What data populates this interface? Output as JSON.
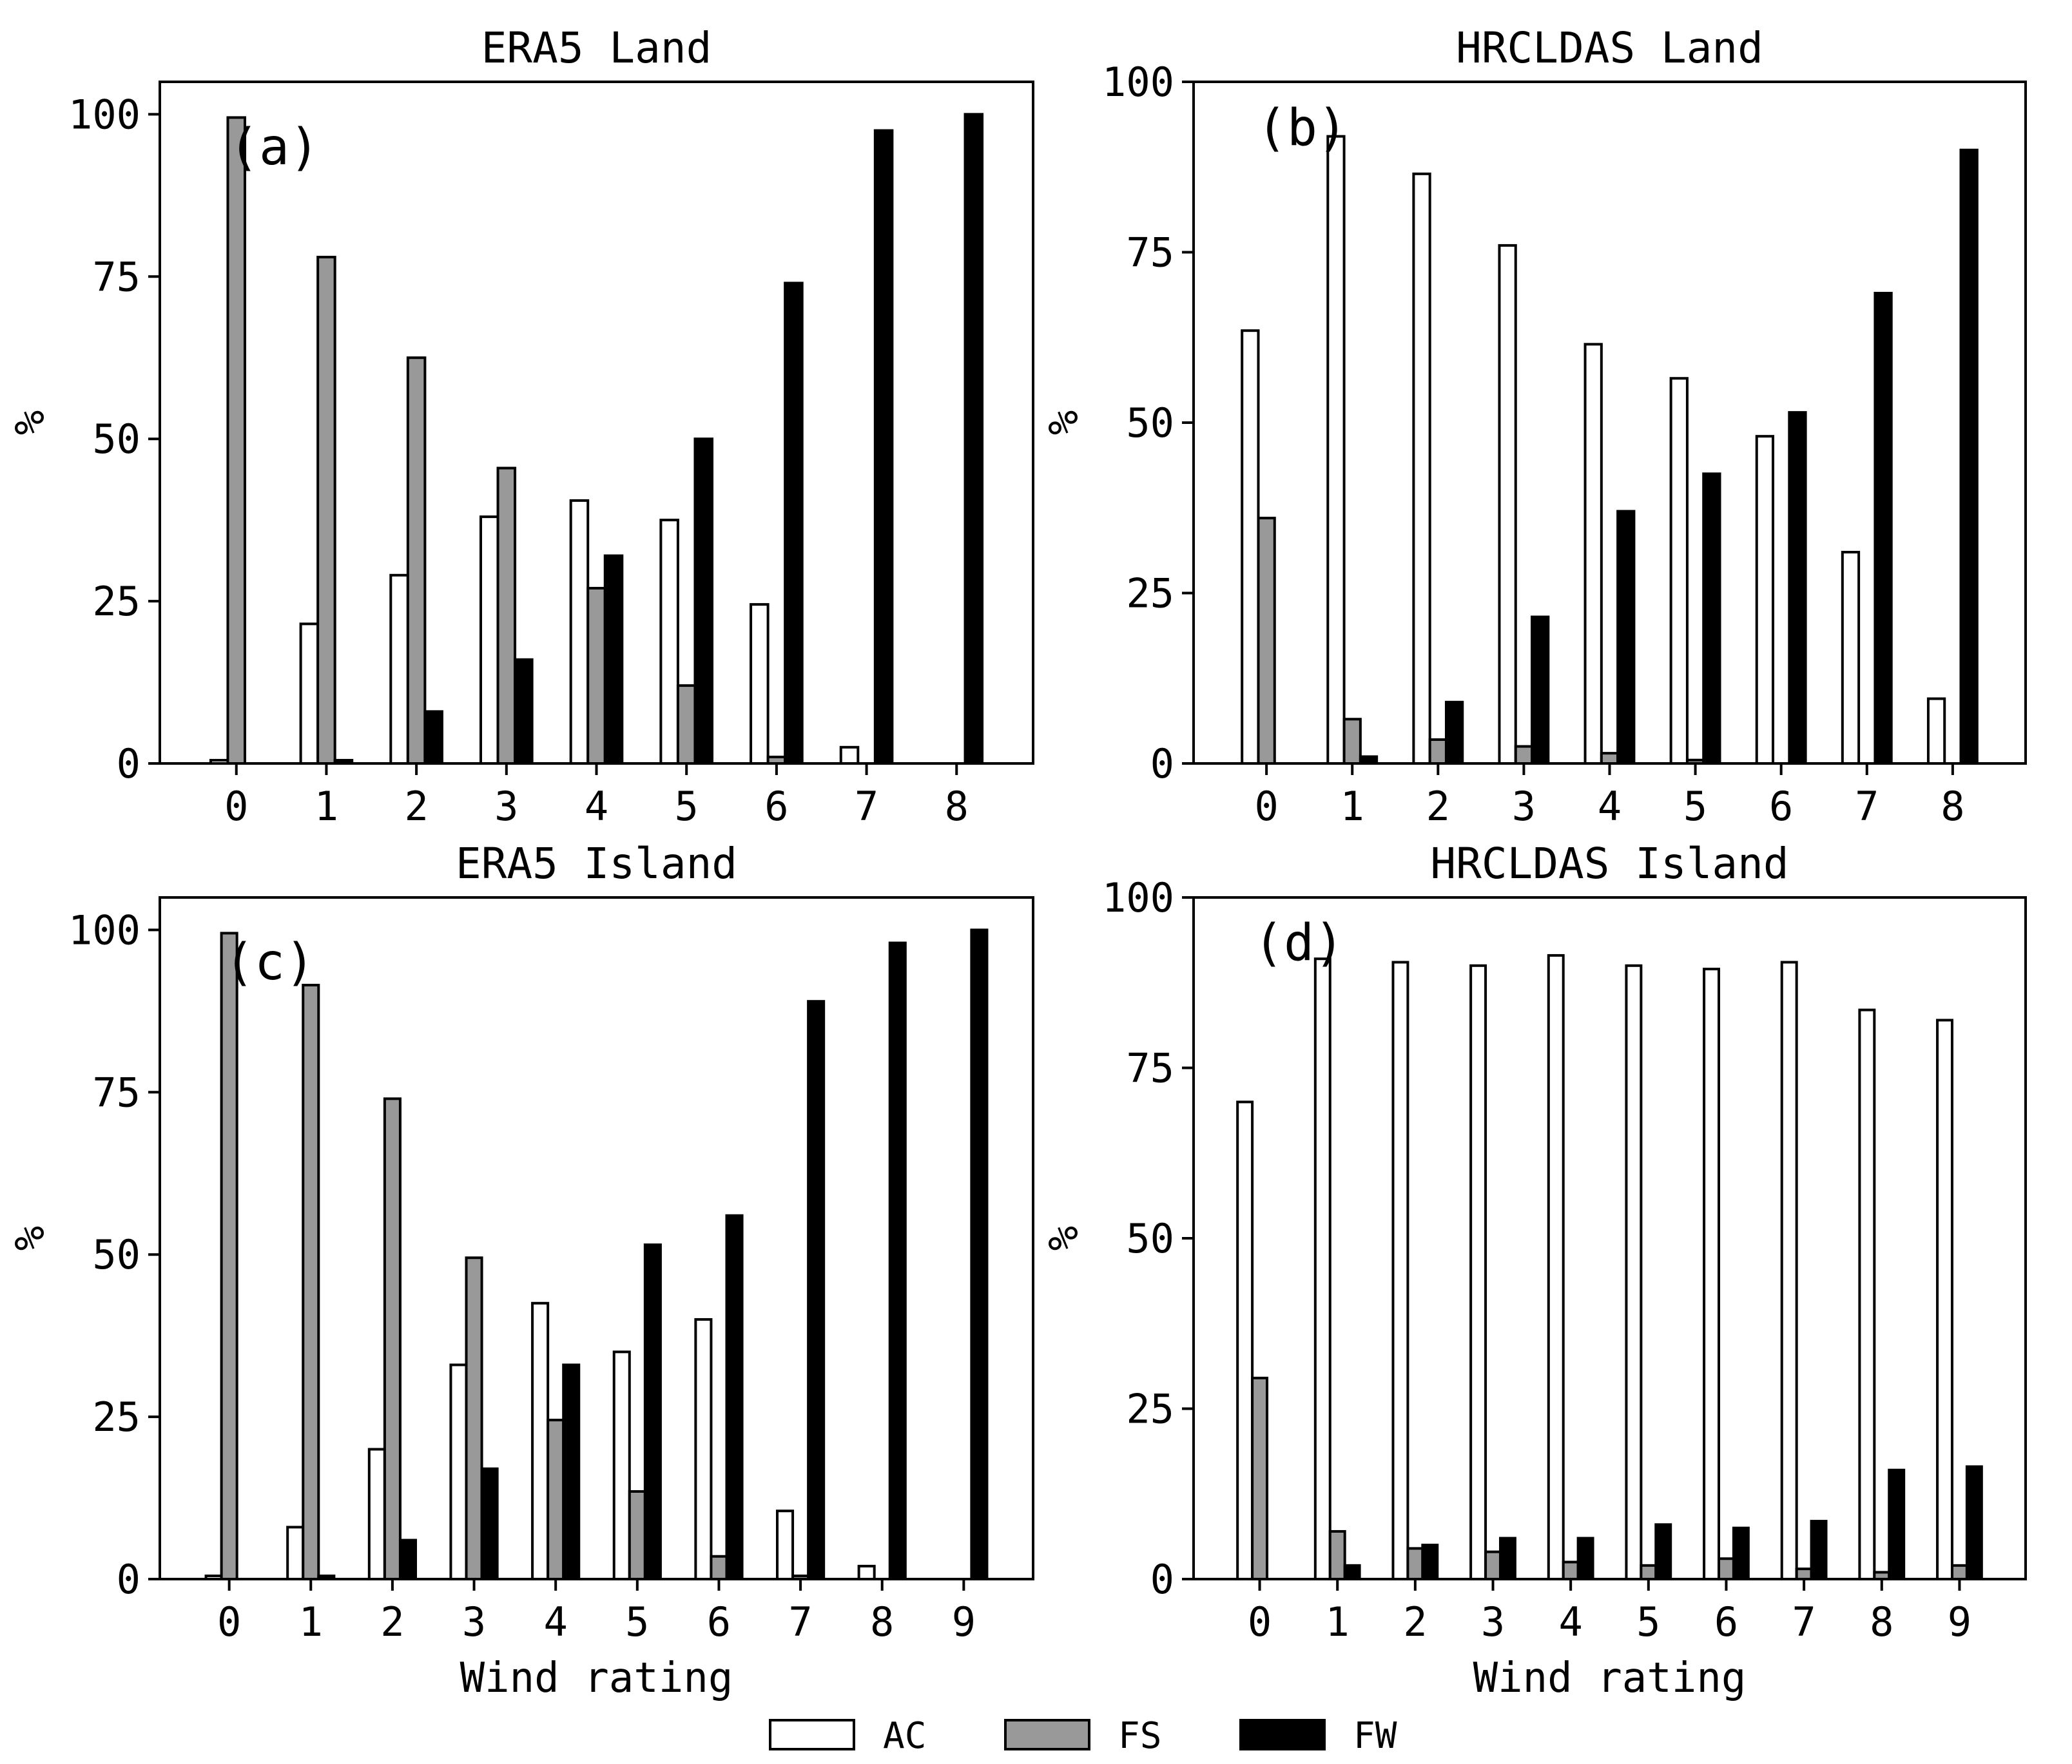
{
  "figure": {
    "legend": {
      "placement": "bottom-center",
      "entries": [
        {
          "label": "AC",
          "color": "#ffffff"
        },
        {
          "label": "FS",
          "color": "#999999"
        },
        {
          "label": "FW",
          "color": "#000000"
        }
      ]
    }
  },
  "chart_data": [
    {
      "type": "bar",
      "panel_label": "(a)",
      "title": "ERA5 Land",
      "xlabel": "",
      "ylabel": "%",
      "ylim": [
        0,
        105
      ],
      "yticks": [
        0,
        25,
        50,
        75,
        100
      ],
      "categories": [
        "0",
        "1",
        "2",
        "3",
        "4",
        "5",
        "6",
        "7",
        "8"
      ],
      "series": [
        {
          "name": "AC",
          "color": "#ffffff",
          "values": [
            0.5,
            21.5,
            29,
            38,
            40.5,
            37.5,
            24.5,
            2.5,
            0
          ]
        },
        {
          "name": "FS",
          "color": "#999999",
          "values": [
            99.5,
            78,
            62.5,
            45.5,
            27,
            12,
            1,
            0,
            0
          ]
        },
        {
          "name": "FW",
          "color": "#000000",
          "values": [
            0,
            0.5,
            8,
            16,
            32,
            50,
            74,
            97.5,
            100
          ]
        }
      ]
    },
    {
      "type": "bar",
      "panel_label": "(b)",
      "title": "HRCLDAS Land",
      "xlabel": "",
      "ylabel": "%",
      "ylim": [
        0,
        100
      ],
      "yticks": [
        0,
        25,
        50,
        75,
        100
      ],
      "categories": [
        "0",
        "1",
        "2",
        "3",
        "4",
        "5",
        "6",
        "7",
        "8"
      ],
      "series": [
        {
          "name": "AC",
          "color": "#ffffff",
          "values": [
            63.5,
            92,
            86.5,
            76,
            61.5,
            56.5,
            48,
            31,
            9.5
          ]
        },
        {
          "name": "FS",
          "color": "#999999",
          "values": [
            36,
            6.5,
            3.5,
            2.5,
            1.5,
            0.5,
            0,
            0,
            0
          ]
        },
        {
          "name": "FW",
          "color": "#000000",
          "values": [
            0,
            1,
            9,
            21.5,
            37,
            42.5,
            51.5,
            69,
            90
          ]
        }
      ]
    },
    {
      "type": "bar",
      "panel_label": "(c)",
      "title": "ERA5 Island",
      "xlabel": "Wind rating",
      "ylabel": "%",
      "ylim": [
        0,
        105
      ],
      "yticks": [
        0,
        25,
        50,
        75,
        100
      ],
      "categories": [
        "0",
        "1",
        "2",
        "3",
        "4",
        "5",
        "6",
        "7",
        "8",
        "9"
      ],
      "series": [
        {
          "name": "AC",
          "color": "#ffffff",
          "values": [
            0.5,
            8,
            20,
            33,
            42.5,
            35,
            40,
            10.5,
            2,
            0
          ]
        },
        {
          "name": "FS",
          "color": "#999999",
          "values": [
            99.5,
            91.5,
            74,
            49.5,
            24.5,
            13.5,
            3.5,
            0.5,
            0,
            0
          ]
        },
        {
          "name": "FW",
          "color": "#000000",
          "values": [
            0,
            0.5,
            6,
            17,
            33,
            51.5,
            56,
            89,
            98,
            100
          ]
        }
      ]
    },
    {
      "type": "bar",
      "panel_label": "(d)",
      "title": "HRCLDAS Island",
      "xlabel": "Wind rating",
      "ylabel": "%",
      "ylim": [
        0,
        100
      ],
      "yticks": [
        0,
        25,
        50,
        75,
        100
      ],
      "categories": [
        "0",
        "1",
        "2",
        "3",
        "4",
        "5",
        "6",
        "7",
        "8",
        "9"
      ],
      "series": [
        {
          "name": "AC",
          "color": "#ffffff",
          "values": [
            70,
            91,
            90.5,
            90,
            91.5,
            90,
            89.5,
            90.5,
            83.5,
            82
          ]
        },
        {
          "name": "FS",
          "color": "#999999",
          "values": [
            29.5,
            7,
            4.5,
            4,
            2.5,
            2,
            3,
            1.5,
            1,
            2
          ]
        },
        {
          "name": "FW",
          "color": "#000000",
          "values": [
            0,
            2,
            5,
            6,
            6,
            8,
            7.5,
            8.5,
            16,
            16.5
          ]
        }
      ]
    }
  ]
}
